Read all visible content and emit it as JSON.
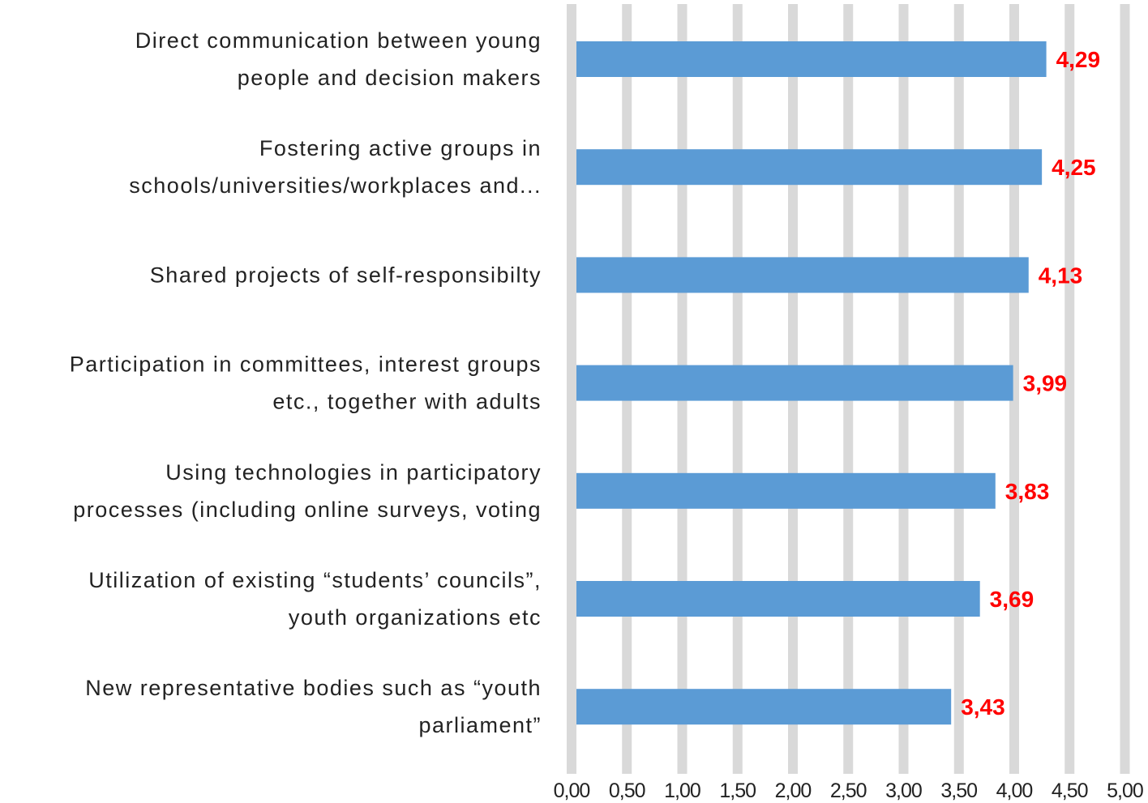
{
  "chart_data": {
    "type": "bar",
    "orientation": "horizontal",
    "title": "",
    "xlabel": "",
    "ylabel": "",
    "xlim": [
      0,
      5
    ],
    "x_ticks": [
      "0,00",
      "0,50",
      "1,00",
      "1,50",
      "2,00",
      "2,50",
      "3,00",
      "3,50",
      "4,00",
      "4,50",
      "5,00"
    ],
    "grid": "vertical",
    "categories": [
      [
        "Direct communication between young",
        "people and decision makers"
      ],
      [
        "Fostering active groups in",
        "schools/universities/workplaces and..."
      ],
      [
        "Shared projects of self-responsibilty"
      ],
      [
        "Participation in committees, interest groups",
        "etc., together with adults"
      ],
      [
        "Using technologies in participatory",
        "processes (including online surveys, voting"
      ],
      [
        "Utilization of existing “students’ councils”,",
        "youth organizations etc"
      ],
      [
        "New representative bodies such as “youth",
        "parliament”"
      ]
    ],
    "values": [
      4.29,
      4.25,
      4.13,
      3.99,
      3.83,
      3.69,
      3.43
    ],
    "data_labels": [
      "4,29",
      "4,25",
      "4,13",
      "3,99",
      "3,83",
      "3,69",
      "3,43"
    ],
    "colors": {
      "bar": "#5b9bd5",
      "gridline": "#d9d9d9",
      "data_label": "#ff0000",
      "text": "#222222"
    }
  }
}
